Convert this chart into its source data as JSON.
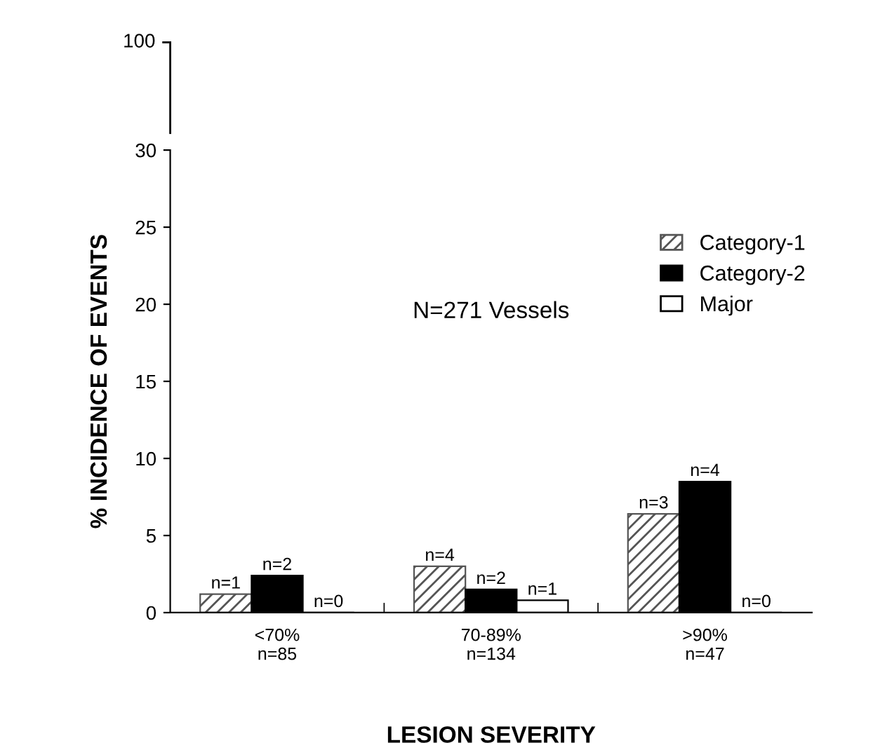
{
  "chart_data": {
    "type": "bar",
    "categories": [
      "<70%\nn=85",
      "70-89%\nn=134",
      ">90%\nn=47"
    ],
    "xlabel": "LESION SEVERITY",
    "ylabel": "% INCIDENCE OF EVENTS",
    "ylim": [
      0,
      30
    ],
    "yticks": [
      0,
      5,
      10,
      15,
      20,
      25,
      30
    ],
    "legend": "right",
    "annotations": [
      "N=271 Vessels",
      "100",
      "n=1",
      "n=2",
      "n=0",
      "n=4",
      "n=2",
      "n=1",
      "n=3",
      "n=4",
      "n=0"
    ],
    "series": [
      {
        "name": "Category-1",
        "color": "#555555",
        "values": [
          1.2,
          3.0,
          6.4
        ]
      },
      {
        "name": "Category-2",
        "color": "#000000",
        "values": [
          2.4,
          1.5,
          8.5
        ]
      },
      {
        "name": "Major",
        "color": "#ffffff",
        "values": [
          0,
          0.8,
          0
        ]
      }
    ]
  }
}
